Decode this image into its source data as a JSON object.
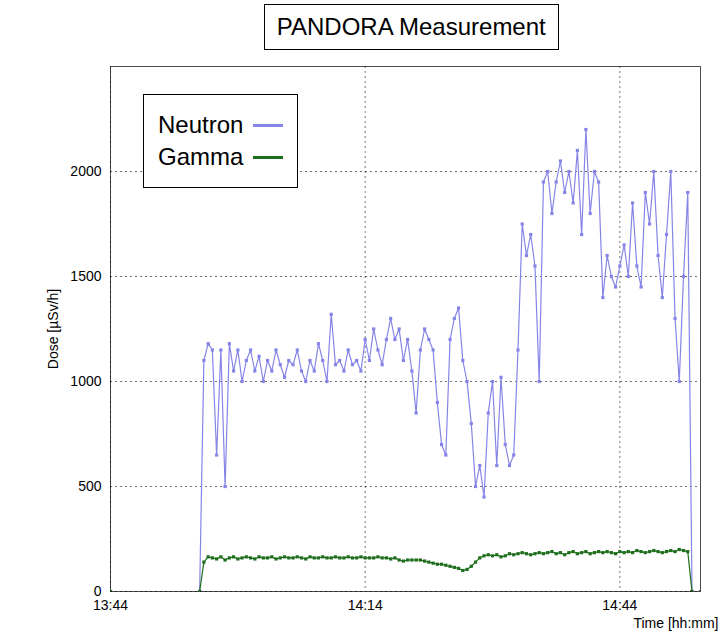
{
  "chart_data": {
    "type": "line",
    "title": "PANDORA Measurement",
    "x_label": "Time [hh:mm]",
    "y_label": "Dose [µSv/h]",
    "x": [
      824,
      834.5,
      835,
      835.5,
      836,
      836.5,
      837,
      837.5,
      838,
      838.5,
      839,
      839.5,
      840,
      840.5,
      841,
      841.5,
      842,
      842.5,
      843,
      843.5,
      844,
      844.5,
      845,
      845.5,
      846,
      846.5,
      847,
      847.5,
      848,
      848.5,
      849,
      849.5,
      850,
      850.5,
      851,
      851.5,
      852,
      852.5,
      853,
      853.5,
      854,
      854.5,
      855,
      855.5,
      856,
      856.5,
      857,
      857.5,
      858,
      858.5,
      859,
      859.5,
      860,
      860.5,
      861,
      861.5,
      862,
      862.5,
      863,
      863.5,
      864,
      864.5,
      865,
      865.5,
      866,
      866.5,
      867,
      867.5,
      868,
      868.5,
      869,
      869.5,
      870,
      870.5,
      871,
      871.5,
      872,
      872.5,
      873,
      873.5,
      874,
      874.5,
      875,
      875.5,
      876,
      876.5,
      877,
      877.5,
      878,
      878.5,
      879,
      879.5,
      880,
      880.5,
      881,
      881.5,
      882,
      882.5,
      883,
      883.5,
      884,
      884.5,
      885,
      885.5,
      886,
      886.5,
      887,
      887.5,
      888,
      888.5,
      889,
      889.5,
      890,
      890.5,
      891,
      891.5,
      892,
      892.5,
      893.5
    ],
    "series": [
      {
        "name": "Neutron",
        "color": "#8585e8",
        "marker": "square",
        "line_style": "solid",
        "values": [
          0,
          0,
          1100,
          1180,
          1150,
          650,
          1150,
          500,
          1180,
          1050,
          1150,
          1000,
          1100,
          1150,
          1050,
          1120,
          1000,
          1100,
          1050,
          1150,
          1080,
          1020,
          1100,
          1080,
          1150,
          1050,
          1000,
          1100,
          1050,
          1180,
          1100,
          1000,
          1320,
          1080,
          1100,
          1050,
          1150,
          1080,
          1100,
          1050,
          1200,
          1100,
          1250,
          1150,
          1080,
          1200,
          1300,
          1200,
          1250,
          1100,
          1200,
          1050,
          850,
          1150,
          1250,
          1200,
          1150,
          900,
          700,
          650,
          1200,
          1300,
          1350,
          1100,
          1000,
          800,
          500,
          600,
          450,
          850,
          1000,
          600,
          1020,
          700,
          600,
          650,
          1150,
          1750,
          1600,
          1700,
          1550,
          1000,
          1950,
          2000,
          1800,
          1950,
          2050,
          1900,
          2000,
          1850,
          2100,
          1700,
          2200,
          1800,
          2000,
          1950,
          1400,
          1600,
          1500,
          1450,
          1550,
          1650,
          1500,
          1850,
          1550,
          1450,
          1900,
          1750,
          2000,
          1600,
          1400,
          1700,
          2000,
          1300,
          1000,
          1500,
          1900,
          0,
          0
        ]
      },
      {
        "name": "Gamma",
        "color": "#1e6e1e",
        "marker": "square",
        "line_style": "solid",
        "values": [
          0,
          0,
          140,
          165,
          160,
          155,
          165,
          150,
          160,
          165,
          155,
          160,
          165,
          160,
          155,
          165,
          160,
          160,
          165,
          155,
          160,
          165,
          160,
          160,
          165,
          160,
          155,
          165,
          160,
          160,
          165,
          160,
          160,
          165,
          160,
          160,
          165,
          160,
          160,
          165,
          160,
          160,
          160,
          165,
          160,
          160,
          155,
          160,
          150,
          145,
          150,
          150,
          150,
          150,
          145,
          140,
          135,
          130,
          130,
          125,
          120,
          115,
          110,
          100,
          105,
          120,
          140,
          160,
          170,
          175,
          170,
          175,
          165,
          170,
          180,
          175,
          180,
          185,
          180,
          175,
          180,
          185,
          180,
          185,
          190,
          180,
          185,
          175,
          185,
          190,
          180,
          185,
          190,
          180,
          185,
          190,
          185,
          190,
          185,
          180,
          190,
          185,
          190,
          185,
          195,
          190,
          185,
          190,
          195,
          190,
          185,
          190,
          195,
          190,
          200,
          195,
          190,
          0,
          0
        ]
      }
    ],
    "xlim": [
      824,
      893.5
    ],
    "xticks": [
      {
        "value": 824,
        "label": "13:44"
      },
      {
        "value": 854,
        "label": "14:14"
      },
      {
        "value": 884,
        "label": "14:44"
      }
    ],
    "ylim": [
      0,
      2500
    ],
    "yticks": [
      0,
      500,
      1000,
      1500,
      2000
    ],
    "grid": true,
    "legend": "top-left"
  }
}
